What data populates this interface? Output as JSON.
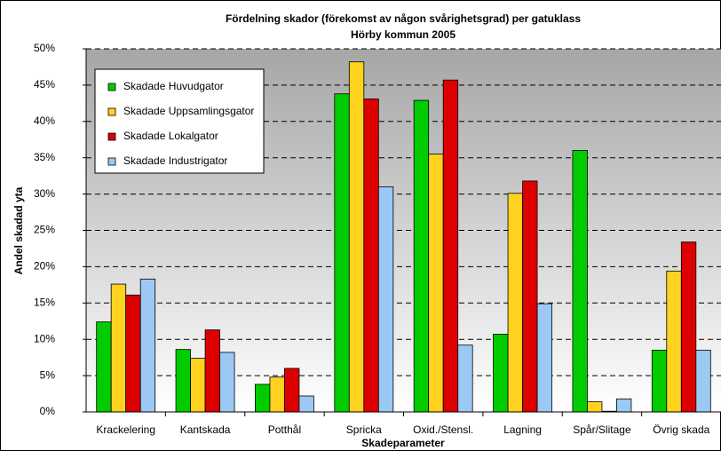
{
  "chart_data": {
    "type": "bar",
    "title": "Fördelning skador (förekomst av någon svårighetsgrad) per gatuklass",
    "subtitle": "Hörby kommun 2005",
    "x_label": "Skadeparameter",
    "y_label": "Andel skadad yta",
    "categories": [
      "Krackelering",
      "Kantskada",
      "Potthål",
      "Spricka",
      "Oxid./Stensl.",
      "Lagning",
      "Spår/Slitage",
      "Övrig skada"
    ],
    "series": [
      {
        "name": "Skadade Huvudgator",
        "color": "#00cc00",
        "values": [
          12.4,
          8.6,
          3.8,
          43.8,
          42.9,
          10.7,
          36.0,
          8.5
        ]
      },
      {
        "name": "Skadade Uppsamlingsgator",
        "color": "#ffd21f",
        "values": [
          17.6,
          7.4,
          4.8,
          48.2,
          35.5,
          30.1,
          1.4,
          19.4
        ]
      },
      {
        "name": "Skadade Lokalgator",
        "color": "#dd0000",
        "values": [
          16.1,
          11.3,
          6.0,
          43.1,
          45.7,
          31.8,
          0.1,
          23.4
        ]
      },
      {
        "name": "Skadade Industrigator",
        "color": "#9cc8f4",
        "values": [
          18.3,
          8.2,
          2.2,
          31.0,
          9.2,
          14.9,
          1.8,
          8.5
        ]
      }
    ],
    "ylim": [
      0,
      50
    ],
    "yticks": [
      {
        "value": 0,
        "label": "0%"
      },
      {
        "value": 5,
        "label": "5%"
      },
      {
        "value": 10,
        "label": "10%"
      },
      {
        "value": 15,
        "label": "15%"
      },
      {
        "value": 20,
        "label": "20%"
      },
      {
        "value": 25,
        "label": "25%"
      },
      {
        "value": 30,
        "label": "30%"
      },
      {
        "value": 35,
        "label": "35%"
      },
      {
        "value": 40,
        "label": "40%"
      },
      {
        "value": 45,
        "label": "45%"
      },
      {
        "value": 50,
        "label": "50%"
      }
    ],
    "grid": true,
    "legend": "upper left"
  }
}
